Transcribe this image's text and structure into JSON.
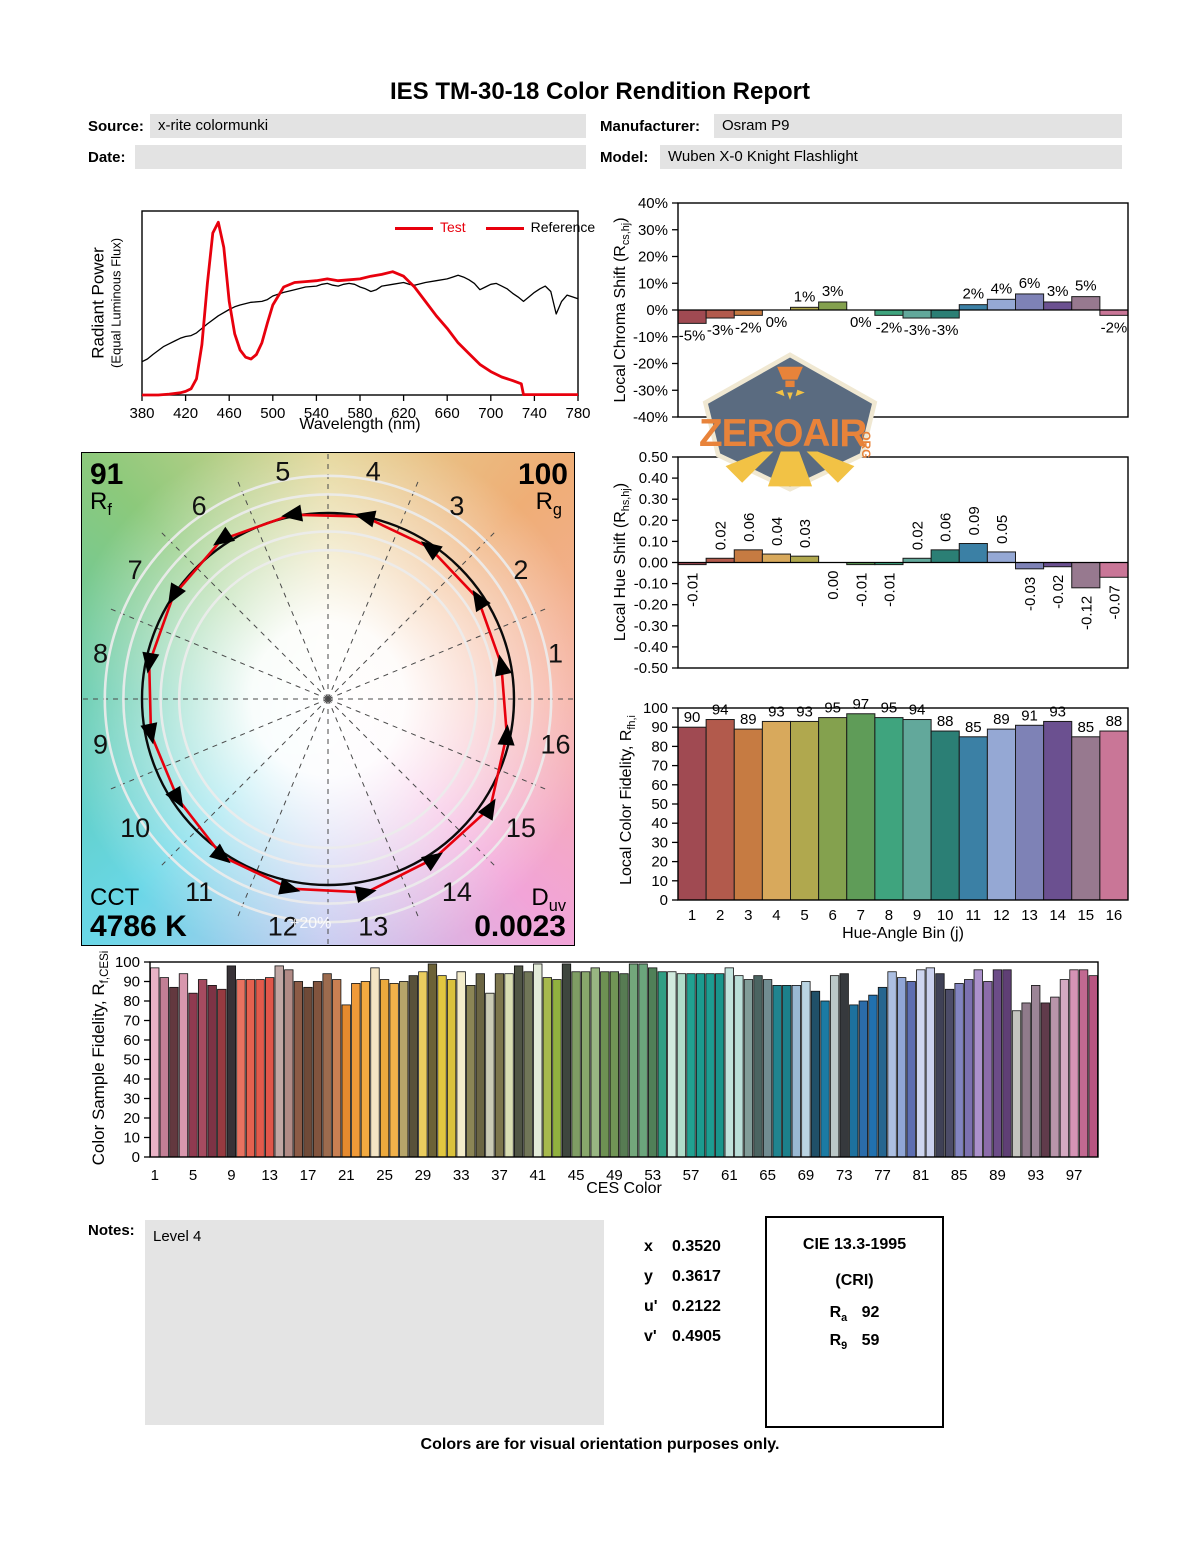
{
  "report": {
    "title": "IES TM-30-18 Color Rendition Report",
    "fields": {
      "source": {
        "label": "Source:",
        "value": "x-rite colormunki"
      },
      "date": {
        "label": "Date:",
        "value": ""
      },
      "manufacturer": {
        "label": "Manufacturer:",
        "value": "Osram P9"
      },
      "model": {
        "label": "Model:",
        "value": "Wuben X-0 Knight Flashlight"
      }
    },
    "legend": {
      "test": "Test",
      "reference": "Reference"
    },
    "notes": {
      "label": "Notes:",
      "value": "Level 4"
    },
    "chromaticity": [
      {
        "label": "x",
        "value": "0.3520"
      },
      {
        "label": "y",
        "value": "0.3617"
      },
      {
        "label": "u'",
        "value": "0.2122"
      },
      {
        "label": "v'",
        "value": "0.4905"
      }
    ],
    "cri_box": {
      "title": "CIE 13.3-1995",
      "subtitle": "(CRI)",
      "rows": [
        {
          "base": "R",
          "sub": "a",
          "value": "92"
        },
        {
          "base": "R",
          "sub": "9",
          "value": "59"
        }
      ]
    },
    "footer": "Colors are for visual orientation purposes only.",
    "logo": {
      "word": "ZEROAIR",
      "suffix": "ORG"
    }
  },
  "axis_titles": {
    "spd_y1": "Radiant Power",
    "spd_y2": "(Equal Luminous Flux)",
    "spd_x": "Wavelength (nm)",
    "chroma_pre": "Local Chroma Shift (R",
    "chroma_sub": "cs,hj",
    "chroma_post": ")",
    "hue_pre": "Local Hue Shift (R",
    "hue_sub": "hs,hj",
    "hue_post": ")",
    "fid_pre": "Local Color Fidelity, R",
    "fid_sub": "fh,i",
    "fid_x": "Hue-Angle Bin (j)",
    "ces_pre": "Color Sample Fidelity, R",
    "ces_sub": "f,CESi",
    "ces_x": "CES Color"
  },
  "bin_colors": [
    "#a04a52",
    "#b25a4c",
    "#c67b42",
    "#d8a95c",
    "#b0a84e",
    "#84a14e",
    "#5f9c58",
    "#3fa47e",
    "#62a89b",
    "#2b7f75",
    "#3b80a5",
    "#95a8d4",
    "#7e82b6",
    "#6b5090",
    "#97798f",
    "#c97697"
  ],
  "chart_data": [
    {
      "id": "spd",
      "type": "line",
      "xlabel": "Wavelength (nm)",
      "ylabel": "Radiant Power (Equal Luminous Flux)",
      "x_ticks": [
        380,
        420,
        460,
        500,
        540,
        580,
        620,
        660,
        700,
        740,
        780
      ],
      "xlim": [
        380,
        780
      ],
      "ylim": [
        0,
        1
      ],
      "grid": false,
      "legend_position": "top-right",
      "series": [
        {
          "name": "Test",
          "color": "#e8000d",
          "points": [
            [
              380,
              0
            ],
            [
              395,
              0
            ],
            [
              405,
              0.005
            ],
            [
              415,
              0.012
            ],
            [
              420,
              0.02
            ],
            [
              425,
              0.035
            ],
            [
              430,
              0.09
            ],
            [
              435,
              0.28
            ],
            [
              440,
              0.62
            ],
            [
              445,
              0.9
            ],
            [
              450,
              0.96
            ],
            [
              455,
              0.82
            ],
            [
              460,
              0.52
            ],
            [
              465,
              0.34
            ],
            [
              470,
              0.25
            ],
            [
              475,
              0.21
            ],
            [
              480,
              0.2
            ],
            [
              485,
              0.225
            ],
            [
              490,
              0.29
            ],
            [
              495,
              0.4
            ],
            [
              500,
              0.5
            ],
            [
              510,
              0.6
            ],
            [
              520,
              0.625
            ],
            [
              530,
              0.63
            ],
            [
              540,
              0.635
            ],
            [
              550,
              0.645
            ],
            [
              560,
              0.635
            ],
            [
              570,
              0.64
            ],
            [
              580,
              0.645
            ],
            [
              590,
              0.66
            ],
            [
              600,
              0.67
            ],
            [
              610,
              0.685
            ],
            [
              620,
              0.66
            ],
            [
              630,
              0.6
            ],
            [
              640,
              0.52
            ],
            [
              650,
              0.44
            ],
            [
              660,
              0.37
            ],
            [
              670,
              0.29
            ],
            [
              680,
              0.23
            ],
            [
              690,
              0.17
            ],
            [
              700,
              0.13
            ],
            [
              710,
              0.1
            ],
            [
              720,
              0.08
            ],
            [
              728,
              0.062
            ],
            [
              730,
              0.002
            ],
            [
              780,
              0.002
            ]
          ]
        },
        {
          "name": "Reference",
          "color": "#000000",
          "points": [
            [
              380,
              0.185
            ],
            [
              385,
              0.2
            ],
            [
              390,
              0.225
            ],
            [
              400,
              0.27
            ],
            [
              405,
              0.285
            ],
            [
              410,
              0.3
            ],
            [
              415,
              0.315
            ],
            [
              420,
              0.325
            ],
            [
              425,
              0.33
            ],
            [
              430,
              0.345
            ],
            [
              440,
              0.395
            ],
            [
              450,
              0.44
            ],
            [
              460,
              0.475
            ],
            [
              465,
              0.49
            ],
            [
              470,
              0.5
            ],
            [
              480,
              0.515
            ],
            [
              490,
              0.52
            ],
            [
              495,
              0.53
            ],
            [
              500,
              0.55
            ],
            [
              510,
              0.57
            ],
            [
              520,
              0.585
            ],
            [
              530,
              0.6
            ],
            [
              540,
              0.605
            ],
            [
              545,
              0.615
            ],
            [
              550,
              0.62
            ],
            [
              555,
              0.61
            ],
            [
              560,
              0.605
            ],
            [
              565,
              0.615
            ],
            [
              570,
              0.62
            ],
            [
              575,
              0.615
            ],
            [
              580,
              0.6
            ],
            [
              585,
              0.59
            ],
            [
              590,
              0.575
            ],
            [
              595,
              0.585
            ],
            [
              600,
              0.605
            ],
            [
              610,
              0.615
            ],
            [
              620,
              0.625
            ],
            [
              625,
              0.615
            ],
            [
              630,
              0.61
            ],
            [
              640,
              0.625
            ],
            [
              650,
              0.635
            ],
            [
              660,
              0.645
            ],
            [
              665,
              0.655
            ],
            [
              670,
              0.665
            ],
            [
              675,
              0.655
            ],
            [
              680,
              0.64
            ],
            [
              685,
              0.62
            ],
            [
              690,
              0.585
            ],
            [
              695,
              0.6
            ],
            [
              700,
              0.615
            ],
            [
              705,
              0.62
            ],
            [
              710,
              0.605
            ],
            [
              715,
              0.59
            ],
            [
              720,
              0.565
            ],
            [
              725,
              0.545
            ],
            [
              730,
              0.52
            ],
            [
              735,
              0.545
            ],
            [
              740,
              0.57
            ],
            [
              745,
              0.59
            ],
            [
              750,
              0.605
            ],
            [
              755,
              0.575
            ],
            [
              760,
              0.45
            ],
            [
              765,
              0.52
            ],
            [
              770,
              0.555
            ],
            [
              775,
              0.545
            ],
            [
              780,
              0.535
            ]
          ]
        }
      ]
    },
    {
      "id": "chroma_shift",
      "type": "bar",
      "ylabel": "Local Chroma Shift (Rcs,hj)",
      "ylim": [
        -40,
        40
      ],
      "y_ticks": [
        "40%",
        "30%",
        "20%",
        "10%",
        "0%",
        "-10%",
        "-20%",
        "-30%",
        "-40%"
      ],
      "categories": [
        1,
        2,
        3,
        4,
        5,
        6,
        7,
        8,
        9,
        10,
        11,
        12,
        13,
        14,
        15,
        16
      ],
      "values": [
        -5,
        -3,
        -2,
        0,
        1,
        3,
        0,
        -2,
        -3,
        -3,
        2,
        4,
        6,
        3,
        5,
        -2
      ],
      "labels": [
        "-5%",
        "-3%",
        "-2%",
        "0%",
        "1%",
        "3%",
        "0%",
        "-2%",
        "-3%",
        "-3%",
        "2%",
        "4%",
        "6%",
        "3%",
        "5%",
        "-2%"
      ]
    },
    {
      "id": "hue_shift",
      "type": "bar",
      "ylabel": "Local Hue Shift (Rhs,hj)",
      "ylim": [
        -0.5,
        0.5
      ],
      "y_ticks": [
        "0.50",
        "0.40",
        "0.30",
        "0.20",
        "0.10",
        "0.00",
        "-0.10",
        "-0.20",
        "-0.30",
        "-0.40",
        "-0.50"
      ],
      "categories": [
        1,
        2,
        3,
        4,
        5,
        6,
        7,
        8,
        9,
        10,
        11,
        12,
        13,
        14,
        15,
        16
      ],
      "values": [
        -0.01,
        0.02,
        0.06,
        0.04,
        0.03,
        0.0,
        -0.01,
        -0.01,
        0.02,
        0.06,
        0.09,
        0.05,
        -0.03,
        -0.02,
        -0.12,
        -0.07
      ],
      "labels": [
        "-0.01",
        "0.02",
        "0.06",
        "0.04",
        "0.03",
        "0.00",
        "-0.01",
        "-0.01",
        "0.02",
        "0.06",
        "0.09",
        "0.05",
        "-0.03",
        "-0.02",
        "-0.12",
        "-0.07"
      ]
    },
    {
      "id": "local_fidelity",
      "type": "bar",
      "ylabel": "Local Color Fidelity, Rfh,i",
      "xlabel": "Hue-Angle Bin (j)",
      "ylim": [
        0,
        100
      ],
      "y_ticks": [
        "100",
        "90",
        "80",
        "70",
        "60",
        "50",
        "40",
        "30",
        "20",
        "10",
        "0"
      ],
      "categories": [
        1,
        2,
        3,
        4,
        5,
        6,
        7,
        8,
        9,
        10,
        11,
        12,
        13,
        14,
        15,
        16
      ],
      "values": [
        90,
        94,
        89,
        93,
        93,
        95,
        97,
        95,
        94,
        88,
        85,
        89,
        91,
        93,
        85,
        88
      ]
    },
    {
      "id": "cvg",
      "type": "polar",
      "rf_value": "91",
      "rf_base": "R",
      "rf_sub": "f",
      "rg_value": "100",
      "rg_base": "R",
      "rg_sub": "g",
      "cct_label": "CCT",
      "cct_value": "4786 K",
      "duv_base": "D",
      "duv_sub": "uv",
      "duv_value": "0.0023",
      "ring_label": "+20%",
      "bins": [
        1,
        2,
        3,
        4,
        5,
        6,
        7,
        8,
        9,
        10,
        11,
        12,
        13,
        14,
        15,
        16
      ],
      "test_chroma_shift_pct": [
        -5,
        -3,
        -2,
        0,
        1,
        3,
        0,
        -2,
        -3,
        -3,
        2,
        4,
        6,
        3,
        5,
        -2
      ],
      "reference": "unit circle",
      "rings_pct": [
        -20,
        -10,
        10,
        20
      ]
    },
    {
      "id": "ces_fidelity",
      "type": "bar",
      "ylabel": "Color Sample Fidelity, Rf,CESi",
      "xlabel": "CES Color",
      "ylim": [
        0,
        100
      ],
      "y_ticks": [
        "100",
        "90",
        "80",
        "70",
        "60",
        "50",
        "40",
        "30",
        "20",
        "10",
        "0"
      ],
      "x_ticks": [
        1,
        5,
        9,
        13,
        17,
        21,
        25,
        29,
        33,
        37,
        41,
        45,
        49,
        53,
        57,
        61,
        65,
        69,
        73,
        77,
        81,
        85,
        89,
        93,
        97
      ],
      "values": [
        97,
        92,
        87,
        94,
        84,
        91,
        88,
        86,
        98,
        91,
        91,
        91,
        92,
        98,
        96,
        90,
        87,
        90,
        94,
        91,
        78,
        89,
        90,
        97,
        91,
        89,
        90,
        93,
        95,
        99,
        93,
        91,
        95,
        88,
        94,
        84,
        94,
        94,
        98,
        95,
        99,
        92,
        91,
        99,
        95,
        95,
        97,
        95,
        95,
        94,
        99,
        99,
        97,
        95,
        95,
        94,
        94,
        94,
        94,
        94,
        97,
        93,
        91,
        93,
        91,
        88,
        88,
        88,
        90,
        85,
        80,
        93,
        94,
        78,
        80,
        83,
        87,
        95,
        92,
        90,
        96,
        97,
        94,
        86,
        89,
        91,
        96,
        90,
        96,
        96,
        75,
        79,
        88,
        79,
        82,
        91,
        96,
        96,
        93
      ],
      "colors": [
        "#e9b3c6",
        "#c27f95",
        "#63383f",
        "#d897ad",
        "#903a50",
        "#a54b60",
        "#7d3345",
        "#963a40",
        "#383237",
        "#e87260",
        "#e5614f",
        "#e25a4b",
        "#e0564a",
        "#c1a7a4",
        "#b18b86",
        "#8c5b46",
        "#6f4a38",
        "#82543e",
        "#9c6b4e",
        "#c87f52",
        "#e58a2e",
        "#f09a38",
        "#f3aa40",
        "#f3e4c4",
        "#eca93d",
        "#f1b14a",
        "#b6a56a",
        "#58513a",
        "#eacd5f",
        "#6c6237",
        "#e1c740",
        "#dac23c",
        "#f3ecca",
        "#8b8555",
        "#6b6543",
        "#cacab5",
        "#7c754c",
        "#d9ddb3",
        "#505545",
        "#717658",
        "#e3ebd9",
        "#a7b94d",
        "#91b13f",
        "#3e463e",
        "#7f9d64",
        "#88a76b",
        "#98b682",
        "#6e9153",
        "#719556",
        "#577c53",
        "#73a77b",
        "#6ba57c",
        "#508058",
        "#309e84",
        "#d1eade",
        "#afdcc9",
        "#21a191",
        "#1c9b8f",
        "#1d9d91",
        "#19958b",
        "#c1e2dc",
        "#baded8",
        "#819c98",
        "#4b6461",
        "#718c91",
        "#20848f",
        "#1c808b",
        "#99b9d3",
        "#bad4e2",
        "#205068",
        "#1b7ba3",
        "#bac7c7",
        "#36393d",
        "#1d719e",
        "#2b6ca9",
        "#2171af",
        "#266690",
        "#acbfe2",
        "#90a6d6",
        "#5d6eb2",
        "#ced6f0",
        "#cad1ee",
        "#3f4156",
        "#4c4c68",
        "#8284c1",
        "#7c71b0",
        "#ab91cb",
        "#8c6caa",
        "#6c4c88",
        "#5f3f75",
        "#c4c4be",
        "#907b8b",
        "#9c8597",
        "#603b4b",
        "#b895aa",
        "#d4a9c1",
        "#d593b5",
        "#c16991",
        "#b85581"
      ]
    }
  ]
}
